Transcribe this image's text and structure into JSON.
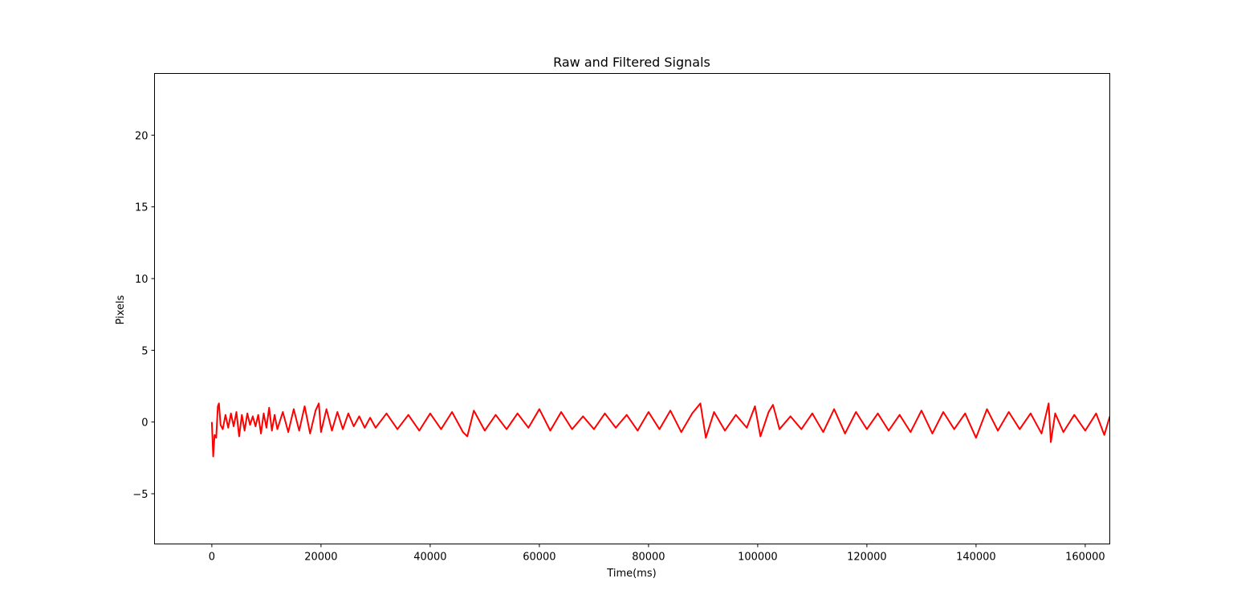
{
  "chart_data": {
    "type": "line",
    "title": "Raw and Filtered Signals",
    "xlabel": "Time(ms)",
    "ylabel": "Pixels",
    "xlim": [
      -10500,
      164500
    ],
    "ylim": [
      -8.5,
      24.3
    ],
    "xticks": [
      0,
      20000,
      40000,
      60000,
      80000,
      100000,
      120000,
      140000,
      160000
    ],
    "xtick_labels": [
      "0",
      "20000",
      "40000",
      "60000",
      "80000",
      "100000",
      "120000",
      "140000",
      "160000"
    ],
    "yticks": [
      -5,
      0,
      5,
      10,
      15,
      20
    ],
    "ytick_labels": [
      "−5",
      "0",
      "5",
      "10",
      "15",
      "20"
    ],
    "grid": false,
    "legend": "none",
    "series": [
      {
        "color": "#ff0000",
        "x": [
          0,
          250,
          500,
          800,
          1100,
          1300,
          1600,
          2000,
          2500,
          3000,
          3500,
          4000,
          4500,
          5000,
          5500,
          6000,
          6500,
          7000,
          7500,
          8000,
          8500,
          9000,
          9500,
          10000,
          10500,
          11000,
          11500,
          12000,
          13000,
          14000,
          15000,
          16000,
          17000,
          18000,
          19000,
          19600,
          20000,
          21000,
          22000,
          23000,
          24000,
          25000,
          26000,
          27000,
          28000,
          29000,
          30000,
          32000,
          34000,
          36000,
          38000,
          40000,
          42000,
          44000,
          46000,
          46800,
          48000,
          50000,
          52000,
          54000,
          56000,
          58000,
          60000,
          62000,
          64000,
          66000,
          68000,
          70000,
          72000,
          74000,
          76000,
          78000,
          80000,
          82000,
          84000,
          86000,
          88000,
          89500,
          90500,
          92000,
          94000,
          96000,
          98000,
          99500,
          100500,
          102000,
          102800,
          104000,
          106000,
          108000,
          110000,
          112000,
          114000,
          116000,
          118000,
          120000,
          122000,
          124000,
          126000,
          128000,
          130000,
          132000,
          134000,
          136000,
          138000,
          140000,
          142000,
          144000,
          146000,
          148000,
          150000,
          152000,
          153300,
          153700,
          154500,
          156000,
          158000,
          160000,
          162000,
          163500,
          164500
        ],
        "y": [
          0.0,
          -2.4,
          -0.9,
          -1.1,
          1.1,
          1.3,
          -0.2,
          -0.5,
          0.5,
          -0.4,
          0.6,
          -0.3,
          0.7,
          -1.0,
          0.5,
          -0.6,
          0.6,
          -0.2,
          0.4,
          -0.3,
          0.5,
          -0.8,
          0.6,
          -0.4,
          1.0,
          -0.6,
          0.5,
          -0.5,
          0.7,
          -0.7,
          0.9,
          -0.6,
          1.1,
          -0.8,
          0.8,
          1.3,
          -0.7,
          0.9,
          -0.6,
          0.7,
          -0.5,
          0.6,
          -0.3,
          0.4,
          -0.4,
          0.3,
          -0.4,
          0.6,
          -0.5,
          0.5,
          -0.6,
          0.6,
          -0.5,
          0.7,
          -0.7,
          -1.0,
          0.8,
          -0.6,
          0.5,
          -0.5,
          0.6,
          -0.4,
          0.9,
          -0.6,
          0.7,
          -0.5,
          0.4,
          -0.5,
          0.6,
          -0.4,
          0.5,
          -0.6,
          0.7,
          -0.5,
          0.8,
          -0.7,
          0.6,
          1.3,
          -1.1,
          0.7,
          -0.6,
          0.5,
          -0.4,
          1.1,
          -1.0,
          0.7,
          1.2,
          -0.5,
          0.4,
          -0.5,
          0.6,
          -0.7,
          0.9,
          -0.8,
          0.7,
          -0.5,
          0.6,
          -0.6,
          0.5,
          -0.7,
          0.8,
          -0.8,
          0.7,
          -0.5,
          0.6,
          -1.1,
          0.9,
          -0.6,
          0.7,
          -0.5,
          0.6,
          -0.8,
          1.3,
          -1.4,
          0.6,
          -0.7,
          0.5,
          -0.6,
          0.6,
          -0.9,
          0.4
        ]
      }
    ]
  }
}
